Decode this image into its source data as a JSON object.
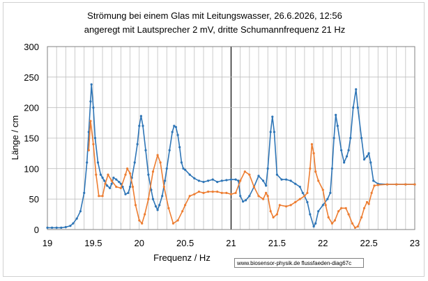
{
  "chart_data": {
    "type": "line",
    "title_line1": "Strömung bei einem Glas mit  Leitungswasser, 26.6.2026, 12:56",
    "title_line2": "angeregt mit Lautsprecher 2 mV,  dritte Schumannfrequenz  21 Hz",
    "xlabel": "Frequenz / Hz",
    "ylabel": "Länge / cm",
    "xlim": [
      19,
      23
    ],
    "ylim": [
      0,
      300
    ],
    "x_ticks": [
      {
        "value": 19,
        "label": "19"
      },
      {
        "value": 19.5,
        "label": "19.5"
      },
      {
        "value": 20,
        "label": "20"
      },
      {
        "value": 20.5,
        "label": "20.5"
      },
      {
        "value": 21,
        "label": "21"
      },
      {
        "value": 21.5,
        "label": "21.5"
      },
      {
        "value": 22,
        "label": "22"
      },
      {
        "value": 22.5,
        "label": "22.5"
      },
      {
        "value": 23,
        "label": "23"
      }
    ],
    "y_ticks": [
      {
        "value": 0,
        "label": "0"
      },
      {
        "value": 50,
        "label": "50"
      },
      {
        "value": 100,
        "label": "100"
      },
      {
        "value": 150,
        "label": "150"
      },
      {
        "value": 200,
        "label": "200"
      },
      {
        "value": 250,
        "label": "250"
      },
      {
        "value": 300,
        "label": "300"
      }
    ],
    "minor_gridline_step": 0.1,
    "highlight_gridline_x": 21,
    "grid": true,
    "legend": "none",
    "series": [
      {
        "color": "#2e75b6",
        "points": [
          [
            19.0,
            3
          ],
          [
            19.05,
            3
          ],
          [
            19.1,
            3
          ],
          [
            19.15,
            3
          ],
          [
            19.2,
            4
          ],
          [
            19.25,
            6
          ],
          [
            19.28,
            10
          ],
          [
            19.32,
            18
          ],
          [
            19.36,
            30
          ],
          [
            19.4,
            60
          ],
          [
            19.43,
            110
          ],
          [
            19.45,
            160
          ],
          [
            19.47,
            210
          ],
          [
            19.48,
            238
          ],
          [
            19.5,
            200
          ],
          [
            19.52,
            150
          ],
          [
            19.55,
            110
          ],
          [
            19.58,
            90
          ],
          [
            19.6,
            85
          ],
          [
            19.62,
            80
          ],
          [
            19.65,
            72
          ],
          [
            19.68,
            68
          ],
          [
            19.7,
            75
          ],
          [
            19.72,
            85
          ],
          [
            19.75,
            82
          ],
          [
            19.78,
            78
          ],
          [
            19.8,
            75
          ],
          [
            19.82,
            70
          ],
          [
            19.85,
            58
          ],
          [
            19.88,
            60
          ],
          [
            19.9,
            70
          ],
          [
            19.92,
            85
          ],
          [
            19.95,
            110
          ],
          [
            19.98,
            140
          ],
          [
            20.0,
            170
          ],
          [
            20.02,
            186
          ],
          [
            20.04,
            170
          ],
          [
            20.07,
            130
          ],
          [
            20.1,
            90
          ],
          [
            20.13,
            65
          ],
          [
            20.15,
            50
          ],
          [
            20.18,
            38
          ],
          [
            20.2,
            32
          ],
          [
            20.22,
            40
          ],
          [
            20.25,
            55
          ],
          [
            20.28,
            80
          ],
          [
            20.3,
            100
          ],
          [
            20.33,
            130
          ],
          [
            20.36,
            160
          ],
          [
            20.38,
            170
          ],
          [
            20.4,
            168
          ],
          [
            20.42,
            155
          ],
          [
            20.44,
            135
          ],
          [
            20.46,
            110
          ],
          [
            20.48,
            100
          ],
          [
            20.5,
            98
          ],
          [
            20.55,
            90
          ],
          [
            20.6,
            84
          ],
          [
            20.65,
            80
          ],
          [
            20.7,
            78
          ],
          [
            20.75,
            80
          ],
          [
            20.8,
            82
          ],
          [
            20.85,
            78
          ],
          [
            20.9,
            80
          ],
          [
            20.95,
            81
          ],
          [
            21.0,
            82
          ],
          [
            21.05,
            82
          ],
          [
            21.08,
            80
          ],
          [
            21.1,
            55
          ],
          [
            21.13,
            46
          ],
          [
            21.16,
            48
          ],
          [
            21.2,
            55
          ],
          [
            21.25,
            70
          ],
          [
            21.3,
            88
          ],
          [
            21.35,
            80
          ],
          [
            21.38,
            72
          ],
          [
            21.4,
            100
          ],
          [
            21.43,
            160
          ],
          [
            21.45,
            185
          ],
          [
            21.47,
            160
          ],
          [
            21.5,
            90
          ],
          [
            21.55,
            82
          ],
          [
            21.6,
            82
          ],
          [
            21.65,
            80
          ],
          [
            21.7,
            75
          ],
          [
            21.75,
            70
          ],
          [
            21.78,
            60
          ],
          [
            21.8,
            55
          ],
          [
            21.83,
            45
          ],
          [
            21.86,
            25
          ],
          [
            21.9,
            5
          ],
          [
            21.92,
            10
          ],
          [
            21.95,
            30
          ],
          [
            22.0,
            40
          ],
          [
            22.05,
            50
          ],
          [
            22.08,
            60
          ],
          [
            22.1,
            100
          ],
          [
            22.12,
            150
          ],
          [
            22.14,
            188
          ],
          [
            22.16,
            170
          ],
          [
            22.2,
            130
          ],
          [
            22.23,
            110
          ],
          [
            22.26,
            120
          ],
          [
            22.28,
            130
          ],
          [
            22.3,
            150
          ],
          [
            22.33,
            200
          ],
          [
            22.36,
            230
          ],
          [
            22.38,
            200
          ],
          [
            22.42,
            150
          ],
          [
            22.45,
            115
          ],
          [
            22.48,
            120
          ],
          [
            22.5,
            125
          ],
          [
            22.52,
            110
          ],
          [
            22.55,
            80
          ],
          [
            22.6,
            75
          ],
          [
            22.7,
            74
          ],
          [
            22.8,
            74
          ],
          [
            22.9,
            74
          ],
          [
            23.0,
            74
          ]
        ]
      },
      {
        "color": "#ed7d31",
        "points": [
          [
            19.45,
            130
          ],
          [
            19.47,
            178
          ],
          [
            19.5,
            140
          ],
          [
            19.53,
            90
          ],
          [
            19.56,
            55
          ],
          [
            19.6,
            55
          ],
          [
            19.63,
            75
          ],
          [
            19.66,
            90
          ],
          [
            19.7,
            80
          ],
          [
            19.75,
            70
          ],
          [
            19.8,
            68
          ],
          [
            19.85,
            90
          ],
          [
            19.87,
            100
          ],
          [
            19.9,
            92
          ],
          [
            19.93,
            70
          ],
          [
            19.96,
            40
          ],
          [
            20.0,
            15
          ],
          [
            20.03,
            10
          ],
          [
            20.06,
            25
          ],
          [
            20.1,
            50
          ],
          [
            20.15,
            95
          ],
          [
            20.2,
            122
          ],
          [
            20.23,
            110
          ],
          [
            20.27,
            70
          ],
          [
            20.32,
            35
          ],
          [
            20.37,
            10
          ],
          [
            20.42,
            15
          ],
          [
            20.47,
            30
          ],
          [
            20.5,
            40
          ],
          [
            20.55,
            55
          ],
          [
            20.6,
            58
          ],
          [
            20.65,
            62
          ],
          [
            20.7,
            60
          ],
          [
            20.75,
            62
          ],
          [
            20.8,
            62
          ],
          [
            20.85,
            62
          ],
          [
            20.9,
            60
          ],
          [
            20.95,
            60
          ],
          [
            21.0,
            58
          ],
          [
            21.05,
            60
          ],
          [
            21.1,
            80
          ],
          [
            21.15,
            95
          ],
          [
            21.2,
            90
          ],
          [
            21.25,
            70
          ],
          [
            21.3,
            55
          ],
          [
            21.35,
            50
          ],
          [
            21.38,
            60
          ],
          [
            21.4,
            55
          ],
          [
            21.43,
            30
          ],
          [
            21.46,
            20
          ],
          [
            21.5,
            25
          ],
          [
            21.53,
            40
          ],
          [
            21.6,
            38
          ],
          [
            21.65,
            40
          ],
          [
            21.7,
            45
          ],
          [
            21.75,
            50
          ],
          [
            21.8,
            55
          ],
          [
            21.83,
            60
          ],
          [
            21.86,
            100
          ],
          [
            21.88,
            140
          ],
          [
            21.9,
            125
          ],
          [
            21.92,
            95
          ],
          [
            21.95,
            80
          ],
          [
            22.0,
            65
          ],
          [
            22.03,
            40
          ],
          [
            22.06,
            20
          ],
          [
            22.1,
            10
          ],
          [
            22.13,
            15
          ],
          [
            22.17,
            30
          ],
          [
            22.2,
            35
          ],
          [
            22.25,
            35
          ],
          [
            22.28,
            25
          ],
          [
            22.32,
            10
          ],
          [
            22.35,
            3
          ],
          [
            22.38,
            5
          ],
          [
            22.42,
            20
          ],
          [
            22.45,
            35
          ],
          [
            22.48,
            45
          ],
          [
            22.5,
            42
          ],
          [
            22.53,
            60
          ],
          [
            22.56,
            72
          ],
          [
            22.6,
            73
          ],
          [
            22.7,
            74
          ],
          [
            22.8,
            74
          ],
          [
            22.9,
            74
          ],
          [
            23.0,
            74
          ]
        ]
      }
    ]
  },
  "footer": {
    "source": "www.biosensor-physik.de  flussfaeden-diag67c"
  }
}
